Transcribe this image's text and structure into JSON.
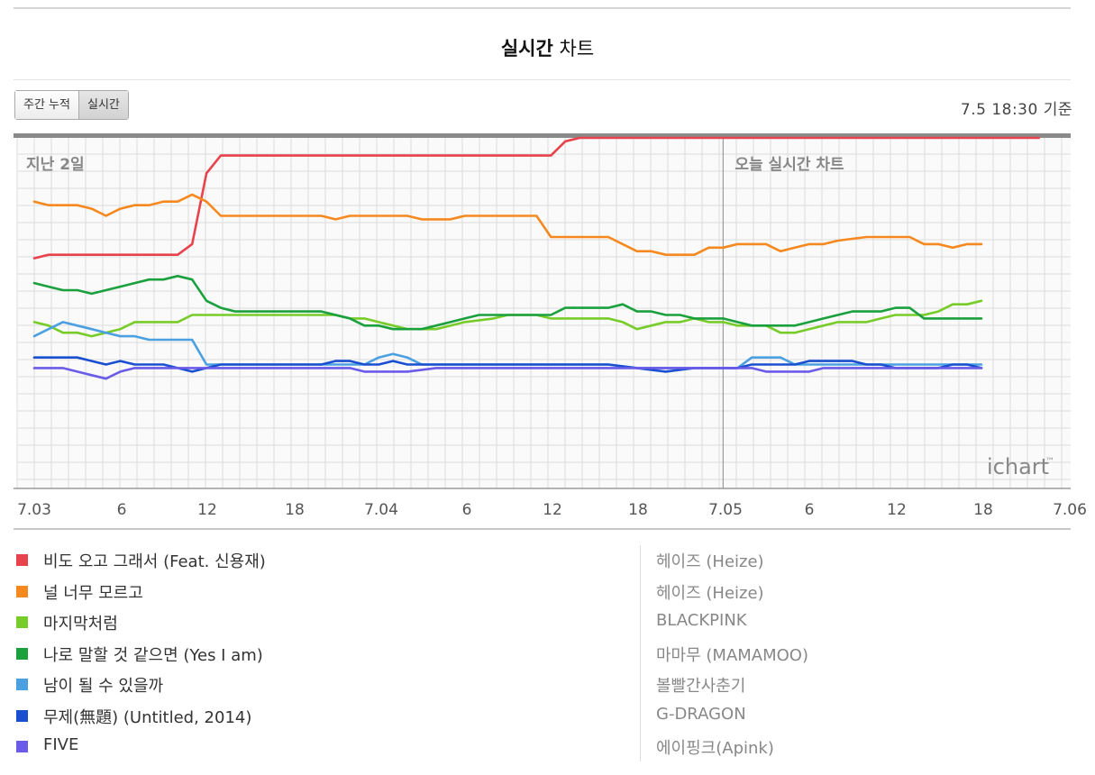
{
  "header": {
    "title_bold": "실시간",
    "title_rest": "차트",
    "tabs": [
      "주간 누적",
      "실시간"
    ],
    "active_tab": "실시간",
    "timestamp": "7.5 18:30 기준"
  },
  "chart_data": {
    "type": "line",
    "annotations": [
      "지난 2일",
      "오늘 실시간 차트"
    ],
    "watermark": "ichart",
    "x_tick_labels": [
      "7.03",
      "6",
      "12",
      "18",
      "7.04",
      "6",
      "12",
      "18",
      "7.05",
      "6",
      "12",
      "18",
      "7.06"
    ],
    "x_hours_start": 0,
    "x_hours_end": 72,
    "xlim": [
      0,
      72
    ],
    "ylim": [
      0,
      100
    ],
    "y_inverted_rank_index": true,
    "grid": true,
    "series": [
      {
        "name": "비도 오고 그래서 (Feat. 신용재)",
        "color": "#e8434c",
        "x": [
          0,
          1,
          10,
          11,
          12,
          13,
          14,
          36,
          37,
          38,
          42,
          45,
          48,
          50,
          51,
          55,
          58,
          62,
          66,
          70
        ],
        "y": [
          66,
          67,
          67,
          70,
          90,
          95,
          95,
          95,
          99,
          100,
          100,
          100,
          100,
          100,
          100,
          100,
          100,
          100,
          100,
          100
        ]
      },
      {
        "name": "널 너무 모르고",
        "color": "#f5891f",
        "x": [
          0,
          1,
          3,
          4,
          5,
          6,
          7,
          8,
          9,
          10,
          11,
          12,
          13,
          14,
          20,
          21,
          22,
          26,
          27,
          28,
          29,
          30,
          31,
          32,
          35,
          36,
          37,
          38,
          40,
          41,
          42,
          43,
          44,
          46,
          47,
          48,
          49,
          50,
          51,
          52,
          53,
          54,
          55,
          56,
          58,
          59,
          60,
          61,
          62,
          63,
          64,
          65,
          66
        ],
        "y": [
          82,
          81,
          81,
          80,
          78,
          80,
          81,
          81,
          82,
          82,
          84,
          82,
          78,
          78,
          78,
          77,
          78,
          78,
          77,
          77,
          77,
          78,
          78,
          78,
          78,
          72,
          72,
          72,
          72,
          70,
          68,
          68,
          67,
          67,
          69,
          69,
          70,
          70,
          70,
          68,
          69,
          70,
          70,
          71,
          72,
          72,
          72,
          72,
          70,
          70,
          69,
          70,
          70
        ]
      },
      {
        "name": "마지막처럼",
        "color": "#77cc2a",
        "x": [
          0,
          1,
          2,
          3,
          4,
          5,
          6,
          7,
          8,
          9,
          10,
          11,
          12,
          13,
          14,
          20,
          21,
          22,
          23,
          24,
          25,
          26,
          27,
          28,
          29,
          30,
          32,
          33,
          34,
          35,
          36,
          37,
          40,
          41,
          42,
          43,
          44,
          45,
          46,
          47,
          48,
          49,
          50,
          51,
          52,
          53,
          54,
          55,
          56,
          57,
          58,
          59,
          60,
          61,
          62,
          63,
          64,
          65,
          66
        ],
        "y": [
          48,
          47,
          45,
          45,
          44,
          45,
          46,
          48,
          48,
          48,
          48,
          50,
          50,
          50,
          50,
          50,
          50,
          49,
          49,
          48,
          47,
          46,
          46,
          46,
          47,
          48,
          49,
          50,
          50,
          50,
          49,
          49,
          49,
          48,
          46,
          47,
          48,
          48,
          49,
          48,
          48,
          47,
          47,
          47,
          45,
          45,
          46,
          47,
          48,
          48,
          48,
          49,
          50,
          50,
          50,
          51,
          53,
          53,
          54
        ]
      },
      {
        "name": "나로 말할 것 같으면 (Yes I am)",
        "color": "#1aa03c",
        "x": [
          0,
          1,
          2,
          3,
          4,
          5,
          6,
          7,
          8,
          9,
          10,
          11,
          12,
          13,
          14,
          20,
          22,
          23,
          24,
          25,
          26,
          27,
          28,
          29,
          30,
          31,
          36,
          37,
          38,
          39,
          40,
          41,
          42,
          43,
          44,
          45,
          46,
          47,
          48,
          49,
          50,
          51,
          52,
          53,
          54,
          55,
          56,
          57,
          58,
          59,
          60,
          61,
          62,
          63,
          64,
          65,
          66
        ],
        "y": [
          59,
          58,
          57,
          57,
          56,
          57,
          58,
          59,
          60,
          60,
          61,
          60,
          54,
          52,
          51,
          51,
          49,
          47,
          47,
          46,
          46,
          46,
          47,
          48,
          49,
          50,
          50,
          52,
          52,
          52,
          52,
          53,
          51,
          51,
          50,
          50,
          49,
          49,
          49,
          48,
          47,
          47,
          47,
          47,
          48,
          49,
          50,
          51,
          51,
          51,
          52,
          52,
          49,
          49,
          49,
          49,
          49
        ]
      },
      {
        "name": "남이 될 수 있을까",
        "color": "#4aa0e0",
        "x": [
          0,
          1,
          2,
          3,
          4,
          5,
          6,
          7,
          8,
          9,
          10,
          11,
          12,
          13,
          14,
          20,
          23,
          24,
          25,
          26,
          27,
          28,
          29,
          30,
          31,
          32,
          35,
          36,
          38,
          40,
          42,
          44,
          46,
          47,
          48,
          49,
          50,
          51,
          52,
          53,
          54,
          55,
          56,
          57,
          58,
          59,
          60,
          61,
          62,
          63,
          64,
          65,
          66
        ],
        "y": [
          44,
          46,
          48,
          47,
          46,
          45,
          44,
          44,
          43,
          43,
          43,
          43,
          36,
          36,
          36,
          36,
          36,
          38,
          39,
          38,
          36,
          36,
          36,
          36,
          36,
          36,
          36,
          36,
          36,
          36,
          35,
          35,
          35,
          35,
          35,
          35,
          38,
          38,
          38,
          36,
          36,
          36,
          36,
          36,
          36,
          36,
          36,
          36,
          36,
          36,
          36,
          36,
          36
        ]
      },
      {
        "name": "무제(無題) (Untitled, 2014)",
        "color": "#1a4fd0",
        "x": [
          0,
          1,
          2,
          3,
          4,
          5,
          6,
          7,
          8,
          9,
          10,
          11,
          12,
          13,
          14,
          18,
          20,
          21,
          22,
          23,
          24,
          25,
          26,
          28,
          30,
          32,
          36,
          38,
          40,
          42,
          44,
          46,
          47,
          48,
          49,
          50,
          51,
          52,
          53,
          54,
          55,
          56,
          57,
          58,
          59,
          60,
          61,
          62,
          63,
          64,
          65,
          66
        ],
        "y": [
          38,
          38,
          38,
          38,
          37,
          36,
          37,
          36,
          36,
          36,
          35,
          34,
          35,
          36,
          36,
          36,
          36,
          37,
          37,
          36,
          36,
          37,
          36,
          36,
          36,
          36,
          36,
          36,
          36,
          35,
          34,
          35,
          35,
          35,
          35,
          36,
          36,
          36,
          36,
          37,
          37,
          37,
          37,
          36,
          36,
          35,
          35,
          35,
          35,
          36,
          36,
          35
        ]
      },
      {
        "name": "FIVE",
        "color": "#6a5be8",
        "x": [
          0,
          1,
          2,
          3,
          4,
          5,
          6,
          7,
          8,
          9,
          10,
          11,
          12,
          13,
          14,
          20,
          21,
          22,
          23,
          24,
          25,
          26,
          28,
          30,
          32,
          36,
          38,
          40,
          44,
          46,
          48,
          50,
          51,
          52,
          53,
          54,
          55,
          56,
          57,
          58,
          59,
          60,
          61,
          62,
          63,
          64,
          65,
          66
        ],
        "y": [
          35,
          35,
          35,
          34,
          33,
          32,
          34,
          35,
          35,
          35,
          35,
          35,
          35,
          35,
          35,
          35,
          35,
          35,
          34,
          34,
          34,
          34,
          35,
          35,
          35,
          35,
          35,
          35,
          35,
          35,
          35,
          35,
          34,
          34,
          34,
          34,
          35,
          35,
          35,
          35,
          35,
          35,
          35,
          35,
          35,
          35,
          35,
          35
        ]
      }
    ]
  },
  "legend": {
    "items": [
      {
        "song": "비도 오고 그래서 (Feat. 신용재)",
        "artist": "헤이즈 (Heize)",
        "color": "#e8434c"
      },
      {
        "song": "널 너무 모르고",
        "artist": "헤이즈 (Heize)",
        "color": "#f5891f"
      },
      {
        "song": "마지막처럼",
        "artist": "BLACKPINK",
        "color": "#77cc2a"
      },
      {
        "song": "나로 말할 것 같으면 (Yes I am)",
        "artist": "마마무 (MAMAMOO)",
        "color": "#1aa03c"
      },
      {
        "song": "남이 될 수 있을까",
        "artist": "볼빨간사춘기",
        "color": "#4aa0e0"
      },
      {
        "song": "무제(無題) (Untitled, 2014)",
        "artist": "G-DRAGON",
        "color": "#1a4fd0"
      },
      {
        "song": "FIVE",
        "artist": "에이핑크(Apink)",
        "color": "#6a5be8"
      }
    ]
  }
}
